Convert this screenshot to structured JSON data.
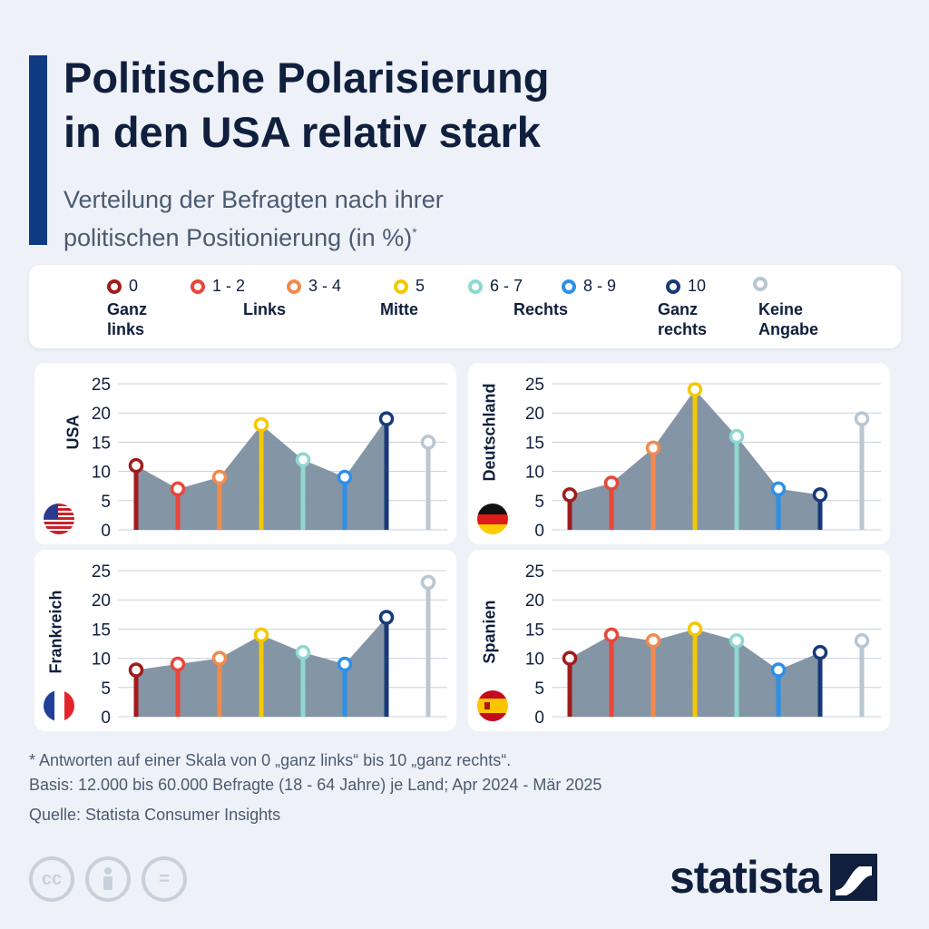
{
  "header": {
    "title_line1": "Politische Polarisierung",
    "title_line2": "in den USA relativ stark",
    "subtitle_line1": "Verteilung der Befragten nach ihrer",
    "subtitle_line2": "politischen Positionierung (in %)",
    "subtitle_mark": "*"
  },
  "legend": {
    "items": [
      {
        "label": "0",
        "color": "#a01c1c"
      },
      {
        "label": "1 - 2",
        "color": "#e8473a"
      },
      {
        "label": "3 - 4",
        "color": "#f28a4e"
      },
      {
        "label": "5",
        "color": "#f5c800"
      },
      {
        "label": "6 - 7",
        "color": "#8ed8d0"
      },
      {
        "label": "8 - 9",
        "color": "#2e8fe8"
      },
      {
        "label": "10",
        "color": "#173a7a"
      },
      {
        "label": "",
        "color": "#b8c7d1"
      }
    ],
    "descriptions": {
      "ganz_links_1": "Ganz",
      "ganz_links_2": "links",
      "links": "Links",
      "mitte": "Mitte",
      "rechts": "Rechts",
      "ganz_rechts_1": "Ganz",
      "ganz_rechts_2": "rechts",
      "keine_1": "Keine",
      "keine_2": "Angabe"
    }
  },
  "chart_data": [
    {
      "type": "line",
      "country": "USA",
      "categories": [
        "0",
        "1 - 2",
        "3 - 4",
        "5",
        "6 - 7",
        "8 - 9",
        "10",
        "Keine Angabe"
      ],
      "values": [
        11,
        7,
        9,
        18,
        12,
        9,
        19,
        15
      ],
      "ylim": [
        0,
        25
      ],
      "yticks": [
        "0",
        "5",
        "10",
        "15",
        "20",
        "25"
      ]
    },
    {
      "type": "line",
      "country": "Deutschland",
      "categories": [
        "0",
        "1 - 2",
        "3 - 4",
        "5",
        "6 - 7",
        "8 - 9",
        "10",
        "Keine Angabe"
      ],
      "values": [
        6,
        8,
        14,
        24,
        16,
        7,
        6,
        19
      ],
      "ylim": [
        0,
        25
      ],
      "yticks": [
        "0",
        "5",
        "10",
        "15",
        "20",
        "25"
      ]
    },
    {
      "type": "line",
      "country": "Frankreich",
      "categories": [
        "0",
        "1 - 2",
        "3 - 4",
        "5",
        "6 - 7",
        "8 - 9",
        "10",
        "Keine Angabe"
      ],
      "values": [
        8,
        9,
        10,
        14,
        11,
        9,
        17,
        23
      ],
      "ylim": [
        0,
        25
      ],
      "yticks": [
        "0",
        "5",
        "10",
        "15",
        "20",
        "25"
      ]
    },
    {
      "type": "line",
      "country": "Spanien",
      "categories": [
        "0",
        "1 - 2",
        "3 - 4",
        "5",
        "6 - 7",
        "8 - 9",
        "10",
        "Keine Angabe"
      ],
      "values": [
        10,
        14,
        13,
        15,
        13,
        8,
        11,
        13
      ],
      "ylim": [
        0,
        25
      ],
      "yticks": [
        "0",
        "5",
        "10",
        "15",
        "20",
        "25"
      ]
    }
  ],
  "colors": {
    "area_fill": "#7d8fa0",
    "point_colors": [
      "#a01c1c",
      "#e8473a",
      "#f28a4e",
      "#f5c800",
      "#8ed8d0",
      "#2e8fe8",
      "#173a7a",
      "#b8c7d1"
    ]
  },
  "footnotes": {
    "note": "* Antworten auf einer Skala von 0 „ganz links“ bis 10 „ganz rechts“.",
    "basis": "Basis: 12.000 bis 60.000 Befragte (18 - 64 Jahre) je Land; Apr 2024 - Mär 2025",
    "source": "Quelle: Statista Consumer Insights"
  },
  "brand": {
    "name": "statista",
    "cc_icons": [
      "cc-icon",
      "by-icon",
      "nd-icon"
    ],
    "cc_label": "cc",
    "nd_label": "="
  }
}
